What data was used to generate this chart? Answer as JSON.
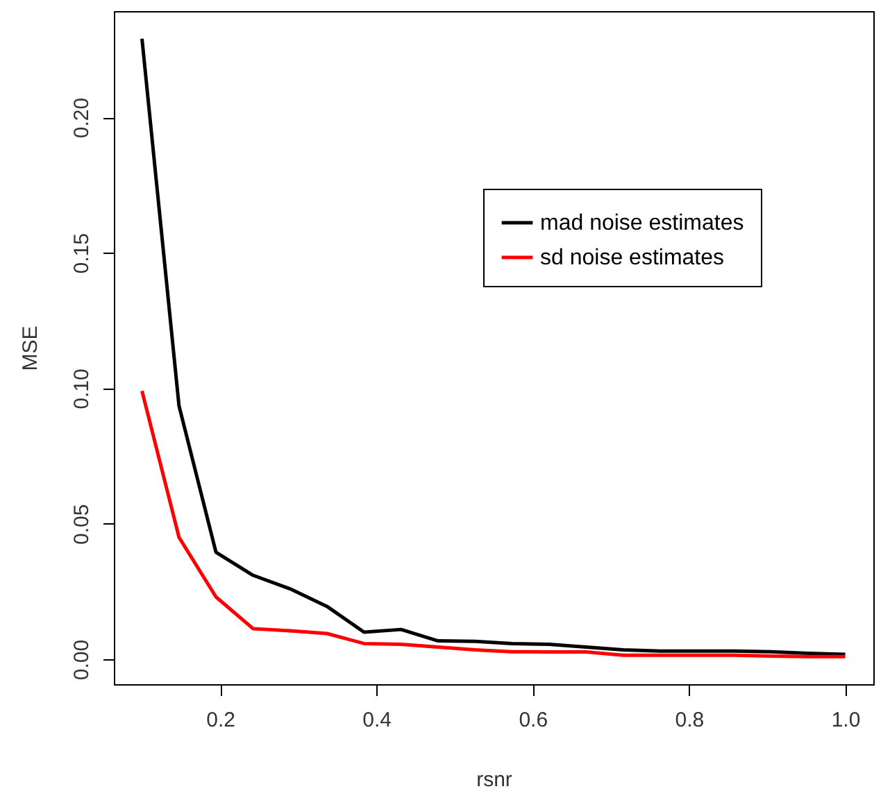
{
  "chart_data": {
    "type": "line",
    "xlabel": "rsnr",
    "ylabel": "MSE",
    "x": [
      0.1,
      0.1474,
      0.1947,
      0.2421,
      0.2895,
      0.3368,
      0.3842,
      0.4316,
      0.4789,
      0.5263,
      0.5737,
      0.6211,
      0.6684,
      0.7158,
      0.7632,
      0.8105,
      0.8579,
      0.9053,
      0.9526,
      1.0
    ],
    "series": [
      {
        "name": "mad noise estimates",
        "color": "#000000",
        "values": [
          0.229,
          0.0935,
          0.0395,
          0.031,
          0.026,
          0.0195,
          0.01,
          0.011,
          0.0068,
          0.0066,
          0.0058,
          0.0055,
          0.0045,
          0.0035,
          0.003,
          0.003,
          0.003,
          0.0028,
          0.0022,
          0.0018
        ]
      },
      {
        "name": "sd noise estimates",
        "color": "#ff0000",
        "values": [
          0.099,
          0.045,
          0.023,
          0.0113,
          0.0105,
          0.0095,
          0.0058,
          0.0055,
          0.0045,
          0.0035,
          0.0028,
          0.0027,
          0.0027,
          0.0015,
          0.0015,
          0.0015,
          0.0015,
          0.0012,
          0.001,
          0.001
        ]
      }
    ],
    "xlim": [
      0.064,
      1.036
    ],
    "ylim": [
      -0.0092,
      0.2392
    ],
    "xticks": [
      0.2,
      0.4,
      0.6,
      0.8,
      {
        "value": 1.0,
        "label": "1.0"
      }
    ],
    "yticks": [
      {
        "value": 0,
        "label": "0.00"
      },
      {
        "value": 0.05,
        "label": "0.05"
      },
      {
        "value": 0.1,
        "label": "0.10"
      },
      {
        "value": 0.15,
        "label": "0.15"
      },
      {
        "value": 0.2,
        "label": "0.20"
      }
    ],
    "legend": "right",
    "grid": false,
    "marker": "none",
    "line_style": "solid"
  }
}
